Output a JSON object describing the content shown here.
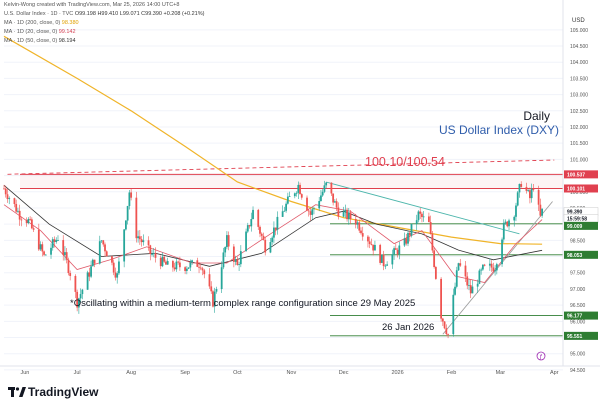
{
  "header": {
    "created_by": "Kelvin-Wong created with TradingView.com, Mar 25, 2026 14:00 UTC+8",
    "symbol_line": "U.S. Dollar Index · 1D · TVC",
    "ohlc": "O99.198 H99.410 L99.071 C99.390 +0.208 (+0.21%)",
    "ma200_label": "MA · 1D (200, close, 0)",
    "ma200_value": "98.380",
    "ma20_label": "MA · 1D (20, close, 0)",
    "ma20_value": "99.142",
    "ma50_label": "MA · 1D (50, close, 0)",
    "ma50_value": "98.194"
  },
  "annotations": {
    "daily": "Daily",
    "index_title": "US Dollar Index (DXY)",
    "range_label": "100.10/100.54",
    "range_note": "*Oscillating within a medium-term complex range configuration since 29 May 2025",
    "date_label": "26 Jan 2026"
  },
  "footer": {
    "brand": "TradingView"
  },
  "colors": {
    "resistance": "#e0404f",
    "support": "#2e7d32",
    "ma200": "#f0b429",
    "ma20": "#e05a6a",
    "ma50": "#333333",
    "up": "#26a69a",
    "down": "#ef5350",
    "title": "#2f5dab"
  },
  "chart_data": {
    "type": "candlestick",
    "y_axis_label": "USD",
    "ylim": [
      94.25,
      105.55
    ],
    "y_ticks": [
      94.5,
      95.0,
      95.5,
      96.0,
      96.5,
      97.0,
      97.5,
      98.0,
      98.5,
      99.0,
      99.5,
      100.0,
      100.5,
      101.0,
      101.5,
      102.0,
      102.5,
      103.0,
      103.5,
      104.0,
      104.5,
      105.0
    ],
    "x_ticks": [
      "Jun",
      "Jul",
      "Aug",
      "Sep",
      "Oct",
      "Nov",
      "Dec",
      "2026",
      "Feb",
      "Mar",
      "Apr"
    ],
    "price_tags": [
      {
        "value": "100.537",
        "type": "resistance"
      },
      {
        "value": "100.101",
        "type": "resistance"
      },
      {
        "value": "99.390",
        "type": "last"
      },
      {
        "value": "15:59:58",
        "type": "countdown"
      },
      {
        "value": "99.009",
        "type": "support"
      },
      {
        "value": "98.053",
        "type": "support"
      },
      {
        "value": "96.177",
        "type": "support"
      },
      {
        "value": "95.551",
        "type": "support"
      }
    ],
    "levels": [
      100.537,
      100.101,
      99.009,
      98.053,
      96.177,
      95.551
    ],
    "price_path": [
      [
        "2025-05-20",
        100.1
      ],
      [
        "2025-05-29",
        99.3
      ],
      [
        "2025-06-03",
        99.1
      ],
      [
        "2025-06-12",
        98.0
      ],
      [
        "2025-06-20",
        98.6
      ],
      [
        "2025-06-27",
        97.5
      ],
      [
        "2025-07-01",
        96.6
      ],
      [
        "2025-07-08",
        97.5
      ],
      [
        "2025-07-15",
        98.5
      ],
      [
        "2025-07-24",
        97.4
      ],
      [
        "2025-07-31",
        100.0
      ],
      [
        "2025-08-04",
        98.7
      ],
      [
        "2025-08-12",
        98.1
      ],
      [
        "2025-08-22",
        97.7
      ],
      [
        "2025-09-01",
        97.7
      ],
      [
        "2025-09-10",
        97.8
      ],
      [
        "2025-09-17",
        96.6
      ],
      [
        "2025-09-25",
        98.5
      ],
      [
        "2025-10-01",
        97.7
      ],
      [
        "2025-10-10",
        99.4
      ],
      [
        "2025-10-17",
        98.3
      ],
      [
        "2025-10-31",
        99.8
      ],
      [
        "2025-11-05",
        100.2
      ],
      [
        "2025-11-12",
        99.3
      ],
      [
        "2025-11-21",
        100.2
      ],
      [
        "2025-11-28",
        99.4
      ],
      [
        "2025-12-08",
        99.1
      ],
      [
        "2025-12-17",
        98.4
      ],
      [
        "2025-12-24",
        97.8
      ],
      [
        "2026-01-05",
        98.4
      ],
      [
        "2026-01-13",
        99.3
      ],
      [
        "2026-01-19",
        99.0
      ],
      [
        "2026-01-26",
        96.2
      ],
      [
        "2026-01-30",
        95.6
      ],
      [
        "2026-02-05",
        97.8
      ],
      [
        "2026-02-12",
        96.9
      ],
      [
        "2026-02-19",
        97.6
      ],
      [
        "2026-02-26",
        97.7
      ],
      [
        "2026-03-03",
        98.9
      ],
      [
        "2026-03-09",
        99.4
      ],
      [
        "2026-03-13",
        100.3
      ],
      [
        "2026-03-18",
        99.8
      ],
      [
        "2026-03-20",
        100.2
      ],
      [
        "2026-03-24",
        99.2
      ],
      [
        "2026-03-25",
        99.39
      ]
    ],
    "ma200_path": [
      [
        "2025-05-20",
        104.8
      ],
      [
        "2025-07-01",
        103.5
      ],
      [
        "2025-08-01",
        102.5
      ],
      [
        "2025-09-01",
        101.4
      ],
      [
        "2025-10-01",
        100.3
      ],
      [
        "2025-11-01",
        99.7
      ],
      [
        "2025-12-01",
        99.2
      ],
      [
        "2026-01-01",
        98.9
      ],
      [
        "2026-02-01",
        98.6
      ],
      [
        "2026-03-01",
        98.4
      ],
      [
        "2026-03-25",
        98.38
      ]
    ],
    "ma50_path": [
      [
        "2025-05-20",
        100.2
      ],
      [
        "2025-06-15",
        99.0
      ],
      [
        "2025-07-15",
        98.0
      ],
      [
        "2025-08-15",
        98.1
      ],
      [
        "2025-09-15",
        97.7
      ],
      [
        "2025-10-15",
        98.1
      ],
      [
        "2025-11-15",
        99.2
      ],
      [
        "2025-12-01",
        99.4
      ],
      [
        "2025-12-20",
        99.0
      ],
      [
        "2026-01-15",
        98.7
      ],
      [
        "2026-02-05",
        98.2
      ],
      [
        "2026-02-25",
        97.9
      ],
      [
        "2026-03-25",
        98.194
      ]
    ],
    "ma20_path": [
      [
        "2025-05-20",
        99.6
      ],
      [
        "2025-06-10",
        98.8
      ],
      [
        "2025-07-01",
        97.6
      ],
      [
        "2025-07-20",
        97.9
      ],
      [
        "2025-08-10",
        98.3
      ],
      [
        "2025-09-05",
        97.8
      ],
      [
        "2025-09-25",
        97.8
      ],
      [
        "2025-10-20",
        98.7
      ],
      [
        "2025-11-15",
        99.6
      ],
      [
        "2025-12-05",
        99.4
      ],
      [
        "2025-12-30",
        98.4
      ],
      [
        "2026-01-15",
        98.8
      ],
      [
        "2026-02-03",
        97.4
      ],
      [
        "2026-02-20",
        97.2
      ],
      [
        "2026-03-10",
        98.4
      ],
      [
        "2026-03-25",
        99.142
      ]
    ],
    "trendlines": [
      {
        "kind": "resistance_dashed",
        "from": [
          "2025-05-22",
          100.54
        ],
        "to": [
          "2026-04-01",
          100.98
        ]
      },
      {
        "kind": "descending",
        "from": [
          "2025-11-21",
          100.3
        ],
        "to": [
          "2026-03-12",
          98.7
        ]
      },
      {
        "kind": "ascending",
        "from": [
          "2026-01-27",
          95.6
        ],
        "to": [
          "2026-03-31",
          99.7
        ]
      }
    ]
  }
}
